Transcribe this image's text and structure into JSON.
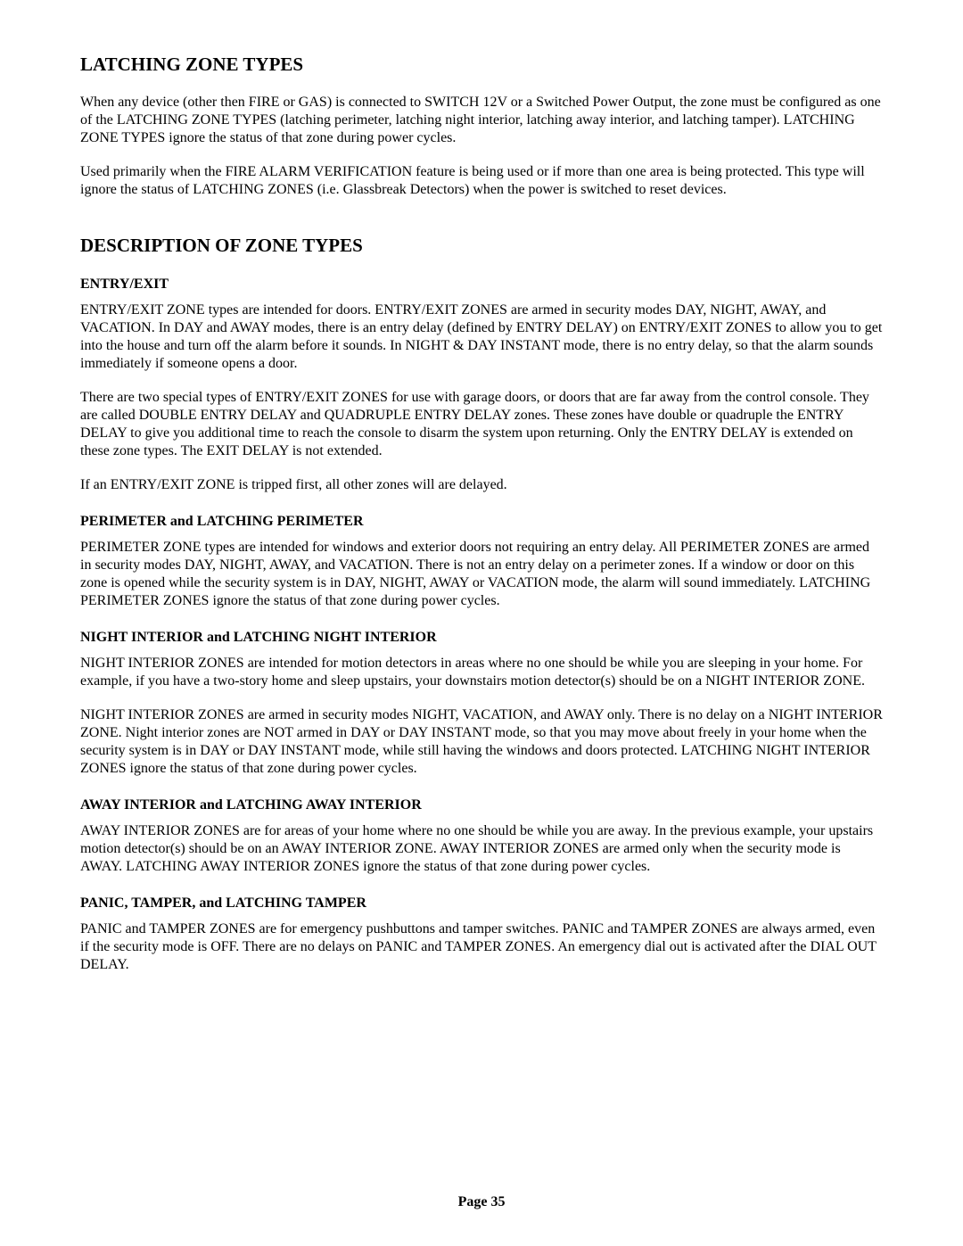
{
  "typography": {
    "heading_fontsize": 21,
    "subheading_fontsize": 16,
    "body_fontsize": 16,
    "font_family": "Times New Roman",
    "text_color": "#000000",
    "background_color": "#ffffff"
  },
  "sections": {
    "latching": {
      "title": "LATCHING ZONE TYPES",
      "para1": "When any device (other then FIRE or GAS) is connected to SWITCH 12V or a Switched Power Output, the zone must be configured as one of the LATCHING ZONE TYPES (latching perimeter, latching night interior, latching away interior, and latching tamper).  LATCHING ZONE TYPES ignore the status of that zone during power cycles.",
      "para2": "Used primarily when the FIRE ALARM VERIFICATION feature is being used or if more than one area is being protected.  This type will ignore the status of LATCHING ZONES (i.e. Glassbreak Detectors) when the power is switched to reset devices."
    },
    "description": {
      "title": "DESCRIPTION OF ZONE TYPES",
      "entry_exit": {
        "title": "ENTRY/EXIT",
        "para1": "ENTRY/EXIT ZONE types are intended for doors.  ENTRY/EXIT ZONES are armed in security modes DAY, NIGHT, AWAY, and VACATION.  In DAY and AWAY modes, there is an entry delay (defined by ENTRY DELAY) on ENTRY/EXIT ZONES to allow you to get into the house and turn off the alarm before it sounds.  In NIGHT & DAY INSTANT mode, there is no entry delay, so that the alarm sounds immediately if someone opens a door.",
        "para2": "There are two special types of ENTRY/EXIT ZONES for use with garage doors, or doors that are far away from the control console.  They are called DOUBLE ENTRY DELAY and QUADRUPLE ENTRY DELAY zones.  These zones have double or quadruple the ENTRY DELAY to give you additional time to reach the console to disarm the system upon returning.  Only the ENTRY DELAY is extended on these zone types.  The EXIT DELAY is not extended.",
        "para3": "If an ENTRY/EXIT ZONE is tripped first, all other zones will are delayed."
      },
      "perimeter": {
        "title": "PERIMETER and LATCHING PERIMETER",
        "para1": "PERIMETER ZONE types are intended for windows and exterior doors not requiring an entry delay.  All PERIMETER ZONES are armed in security modes DAY, NIGHT, AWAY, and VACATION.  There is not an entry delay on a perimeter zones.  If a window or door on this zone is opened while the security system is in DAY, NIGHT, AWAY or VACATION mode, the alarm will sound immediately.  LATCHING PERIMETER ZONES ignore the status of that zone during power cycles."
      },
      "night_interior": {
        "title": "NIGHT INTERIOR and LATCHING NIGHT INTERIOR",
        "para1": "NIGHT INTERIOR ZONES are intended for motion detectors in areas where no one should be while you are sleeping in your home.  For example, if you have a two-story home and sleep upstairs, your downstairs motion detector(s) should be on a NIGHT INTERIOR ZONE.",
        "para2": "NIGHT INTERIOR ZONES are armed in security modes NIGHT, VACATION, and AWAY only.  There is no delay on a NIGHT INTERIOR ZONE.  Night interior zones are NOT armed in DAY or DAY INSTANT mode, so that you may move about freely in your home when the security system is in DAY or DAY INSTANT mode, while still having the windows and doors protected.  LATCHING NIGHT INTERIOR ZONES ignore the status of that zone during power cycles."
      },
      "away_interior": {
        "title": "AWAY INTERIOR and LATCHING AWAY INTERIOR",
        "para1": "AWAY INTERIOR ZONES are for areas of your home where no one should be while you are away.  In the previous example, your upstairs motion detector(s) should be on an AWAY INTERIOR ZONE.  AWAY INTERIOR ZONES are armed only when the security mode is AWAY.  LATCHING AWAY INTERIOR ZONES ignore the status of that zone during power cycles."
      },
      "panic": {
        "title": "PANIC, TAMPER, and LATCHING TAMPER",
        "para1": "PANIC and TAMPER ZONES are for emergency pushbuttons and tamper switches.  PANIC and TAMPER ZONES are always armed, even if the security mode is OFF.  There are no delays on PANIC and TAMPER ZONES.  An emergency dial out is activated after the DIAL OUT DELAY."
      }
    }
  },
  "footer": {
    "page_number": "Page 35"
  }
}
